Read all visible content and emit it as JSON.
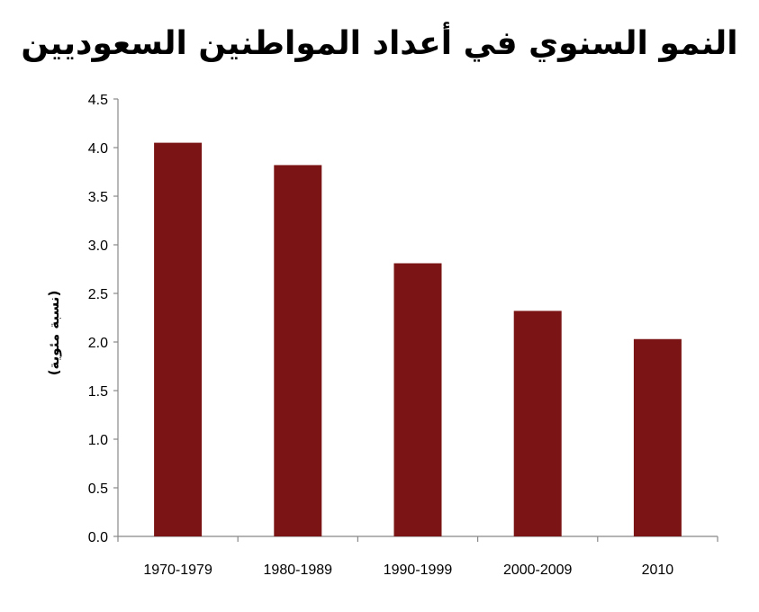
{
  "chart_data": {
    "type": "bar",
    "title": "النمو السنوي في أعداد المواطنين السعوديين",
    "xlabel": "",
    "ylabel": "(نسبة مئوية)",
    "categories": [
      "1970-1979",
      "1980-1989",
      "1990-1999",
      "2000-2009",
      "2010"
    ],
    "values": [
      4.05,
      3.82,
      2.81,
      2.32,
      2.03
    ],
    "ylim": [
      0,
      4.5
    ],
    "yticks": [
      "0.0",
      "0.5",
      "1.0",
      "1.5",
      "2.0",
      "2.5",
      "3.0",
      "3.5",
      "4.0",
      "4.5"
    ],
    "grid": false,
    "legend": null,
    "bar_color": "#7b1414"
  }
}
